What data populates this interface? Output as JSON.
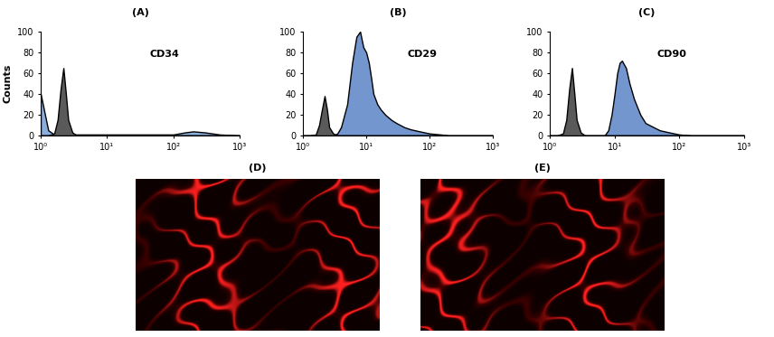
{
  "chart_data": [
    {
      "type": "area",
      "title": "(A)",
      "annotation": "CD34",
      "y_label": "Counts",
      "x": [
        1,
        1.3,
        1.6,
        1.8,
        2.0,
        2.2,
        2.4,
        2.6,
        3,
        3.5,
        4,
        5,
        6,
        7,
        8,
        9,
        10,
        11,
        12,
        13,
        15,
        17,
        20,
        25,
        30,
        40,
        50,
        70,
        100,
        150,
        200,
        300,
        500,
        1000
      ],
      "series": [
        {
          "color": "#8aaedc",
          "values": [
            40,
            5,
            1,
            1,
            1,
            1,
            1,
            1,
            1,
            1,
            1,
            1,
            1,
            1,
            1,
            1,
            1,
            1,
            1,
            1,
            1,
            1,
            1,
            1,
            1,
            1,
            1,
            1,
            1,
            3,
            4,
            3,
            1,
            0
          ]
        },
        {
          "color": "#5a5a5a",
          "values": [
            0,
            0,
            2,
            15,
            45,
            65,
            40,
            15,
            3,
            0,
            0,
            0,
            0,
            0,
            0,
            0,
            0,
            0,
            0,
            0,
            0,
            0,
            0,
            0,
            0,
            0,
            0,
            0,
            0,
            0,
            0,
            0,
            0,
            0
          ]
        }
      ],
      "xlim": [
        1,
        1000
      ],
      "xticks": [
        {
          "value": 1,
          "label": "10⁰"
        },
        {
          "value": 10,
          "label": "10¹"
        },
        {
          "value": 100,
          "label": "10²"
        },
        {
          "value": 1000,
          "label": "10³"
        }
      ],
      "ylim": [
        0,
        100
      ],
      "yticks": [
        0,
        20,
        40,
        60,
        80,
        100
      ],
      "log": "x"
    },
    {
      "type": "area",
      "title": "(B)",
      "annotation": "CD29",
      "x": [
        1,
        1.3,
        1.6,
        1.8,
        2.0,
        2.2,
        2.4,
        2.6,
        3,
        3.5,
        4,
        5,
        6,
        7,
        8,
        9,
        10,
        11,
        12,
        13,
        15,
        17,
        20,
        25,
        30,
        40,
        50,
        70,
        100,
        150,
        200,
        300,
        500,
        1000
      ],
      "series": [
        {
          "color": "#7396cf",
          "values": [
            0,
            0,
            0,
            0,
            0,
            0,
            0,
            0,
            0,
            2,
            8,
            30,
            70,
            95,
            100,
            85,
            80,
            70,
            55,
            40,
            30,
            25,
            20,
            15,
            12,
            8,
            6,
            4,
            2,
            1,
            0,
            0,
            0,
            0
          ]
        },
        {
          "color": "#5a5a5a",
          "values": [
            0,
            0,
            1,
            10,
            25,
            38,
            25,
            8,
            2,
            0,
            0,
            0,
            0,
            0,
            0,
            0,
            0,
            0,
            0,
            0,
            0,
            0,
            0,
            0,
            0,
            0,
            0,
            0,
            0,
            0,
            0,
            0,
            0,
            0
          ]
        }
      ],
      "xlim": [
        1,
        1000
      ],
      "xticks": [
        {
          "value": 1,
          "label": "10⁰"
        },
        {
          "value": 10,
          "label": "10¹"
        },
        {
          "value": 100,
          "label": "10²"
        },
        {
          "value": 1000,
          "label": "10³"
        }
      ],
      "ylim": [
        0,
        100
      ],
      "yticks": [
        0,
        20,
        40,
        60,
        80,
        100
      ],
      "log": "x"
    },
    {
      "type": "area",
      "title": "(C)",
      "annotation": "CD90",
      "x": [
        1,
        1.3,
        1.6,
        1.8,
        2.0,
        2.2,
        2.4,
        2.6,
        3,
        3.5,
        4,
        5,
        6,
        7,
        8,
        9,
        10,
        11,
        12,
        13,
        15,
        17,
        20,
        25,
        30,
        40,
        50,
        70,
        100,
        150,
        200,
        300,
        500,
        1000
      ],
      "series": [
        {
          "color": "#7396cf",
          "values": [
            0,
            0,
            0,
            0,
            0,
            0,
            0,
            0,
            0,
            0,
            0,
            0,
            0,
            0,
            5,
            20,
            40,
            60,
            70,
            72,
            65,
            50,
            35,
            20,
            12,
            8,
            5,
            3,
            1,
            0,
            0,
            0,
            0,
            0
          ]
        },
        {
          "color": "#5a5a5a",
          "values": [
            0,
            0,
            2,
            15,
            45,
            65,
            40,
            15,
            3,
            0,
            0,
            0,
            0,
            0,
            0,
            0,
            0,
            0,
            0,
            0,
            0,
            0,
            0,
            0,
            0,
            0,
            0,
            0,
            0,
            0,
            0,
            0,
            0,
            0
          ]
        }
      ],
      "xlim": [
        1,
        1000
      ],
      "xticks": [
        {
          "value": 1,
          "label": "10⁰"
        },
        {
          "value": 10,
          "label": "10¹"
        },
        {
          "value": 100,
          "label": "10²"
        },
        {
          "value": 1000,
          "label": "10³"
        }
      ],
      "ylim": [
        0,
        100
      ],
      "yticks": [
        0,
        20,
        40,
        60,
        80,
        100
      ],
      "log": "x"
    }
  ],
  "images": [
    {
      "label": "(D)"
    },
    {
      "label": "(E)"
    }
  ]
}
